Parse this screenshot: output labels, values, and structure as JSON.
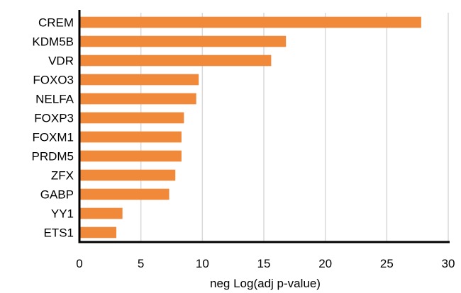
{
  "chart_data": {
    "type": "bar",
    "orientation": "horizontal",
    "categories": [
      "CREM",
      "KDM5B",
      "VDR",
      "FOXO3",
      "NELFA",
      "FOXP3",
      "FOXM1",
      "PRDM5",
      "ZFX",
      "GABP",
      "YY1",
      "ETS1"
    ],
    "values": [
      27.8,
      16.8,
      15.6,
      9.7,
      9.5,
      8.5,
      8.3,
      8.3,
      7.8,
      7.3,
      3.5,
      3.0
    ],
    "title": "",
    "xlabel": "neg Log(adj p-value)",
    "ylabel": "",
    "xlim": [
      0,
      30
    ],
    "xticks": [
      "0",
      "5",
      "10",
      "15",
      "20",
      "25",
      "30"
    ],
    "grid": true,
    "legend": "none",
    "bar_color": "#F0893A",
    "grid_color": "#D9D9D9",
    "axis_color": "#000000"
  }
}
